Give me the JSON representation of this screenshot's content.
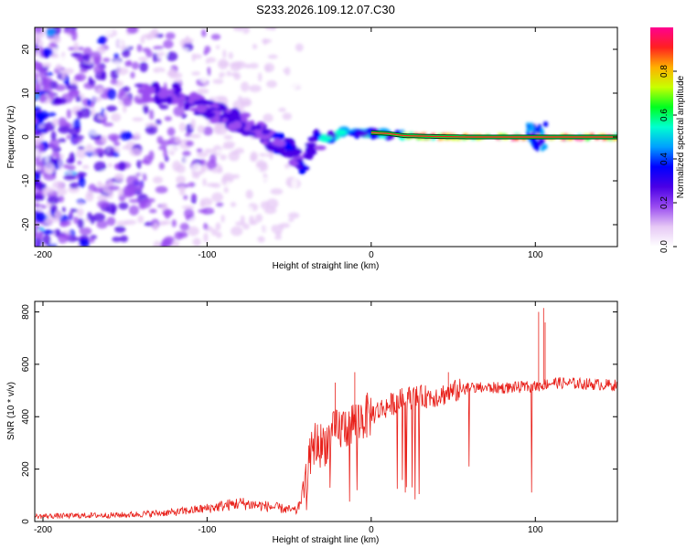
{
  "title": "S233.2026.109.12.07.C30",
  "chart_data": [
    {
      "type": "heatmap",
      "xlabel": "Height of straight line (km)",
      "ylabel": "Frequency (Hz)",
      "xlim": [
        -205,
        150
      ],
      "ylim": [
        -25,
        25
      ],
      "xticks": [
        -200,
        -100,
        0,
        100
      ],
      "xtick_labels": [
        "-200",
        "-100",
        "0",
        "100"
      ],
      "yticks": [
        -20,
        -10,
        0,
        10,
        20
      ],
      "ytick_labels": [
        "-20",
        "-10",
        "0",
        "10",
        "20"
      ],
      "trend_curve": [
        [
          -120,
          10
        ],
        [
          -100,
          6
        ],
        [
          -80,
          3.5
        ],
        [
          -70,
          2
        ],
        [
          -60,
          -1
        ],
        [
          -50,
          -3
        ],
        [
          -40,
          -6.5
        ],
        [
          -35,
          -1
        ],
        [
          -25,
          0
        ],
        [
          -15,
          1.5
        ],
        [
          -5,
          0.5
        ],
        [
          0,
          1
        ],
        [
          10,
          0.8
        ],
        [
          20,
          0.3
        ],
        [
          40,
          0.1
        ],
        [
          60,
          0
        ],
        [
          100,
          0
        ],
        [
          150,
          0
        ]
      ],
      "colorbar": {
        "label": "Normalized spectral amplitude",
        "range": [
          0,
          1
        ],
        "ticks": [
          0.0,
          0.2,
          0.4,
          0.6,
          0.8
        ],
        "tick_labels": [
          "0.0",
          "0.2",
          "0.4",
          "0.6",
          "0.8"
        ],
        "colors": [
          "#ffffff",
          "#e6c8f5",
          "#9a4cf0",
          "#4a00e6",
          "#0000ff",
          "#00a0ff",
          "#00ffd0",
          "#00ff20",
          "#c8ff00",
          "#ffb000",
          "#ff2020",
          "#ff0090"
        ]
      }
    },
    {
      "type": "line",
      "xlabel": "Height of straight line (km)",
      "ylabel": "SNR (10 * v/v)",
      "xlim": [
        -205,
        150
      ],
      "ylim": [
        0,
        840
      ],
      "xticks": [
        -200,
        -100,
        0,
        100
      ],
      "xtick_labels": [
        "-200",
        "-100",
        "0",
        "100"
      ],
      "yticks": [
        0,
        200,
        400,
        600,
        800
      ],
      "ytick_labels": [
        "0",
        "200",
        "400",
        "600",
        "800"
      ],
      "color": "#e8201a",
      "trend": [
        [
          -205,
          20
        ],
        [
          -150,
          25
        ],
        [
          -120,
          35
        ],
        [
          -100,
          50
        ],
        [
          -80,
          70
        ],
        [
          -60,
          55
        ],
        [
          -45,
          40
        ],
        [
          -40,
          150
        ],
        [
          -35,
          300
        ],
        [
          -30,
          290
        ],
        [
          -20,
          350
        ],
        [
          -10,
          380
        ],
        [
          0,
          410
        ],
        [
          20,
          470
        ],
        [
          40,
          480
        ],
        [
          60,
          510
        ],
        [
          80,
          510
        ],
        [
          100,
          515
        ],
        [
          110,
          530
        ],
        [
          150,
          520
        ]
      ],
      "spikes": [
        [
          -10,
          570
        ],
        [
          -22,
          530
        ],
        [
          105,
          815
        ],
        [
          102,
          800
        ],
        [
          106,
          760
        ],
        [
          47,
          570
        ]
      ]
    }
  ]
}
